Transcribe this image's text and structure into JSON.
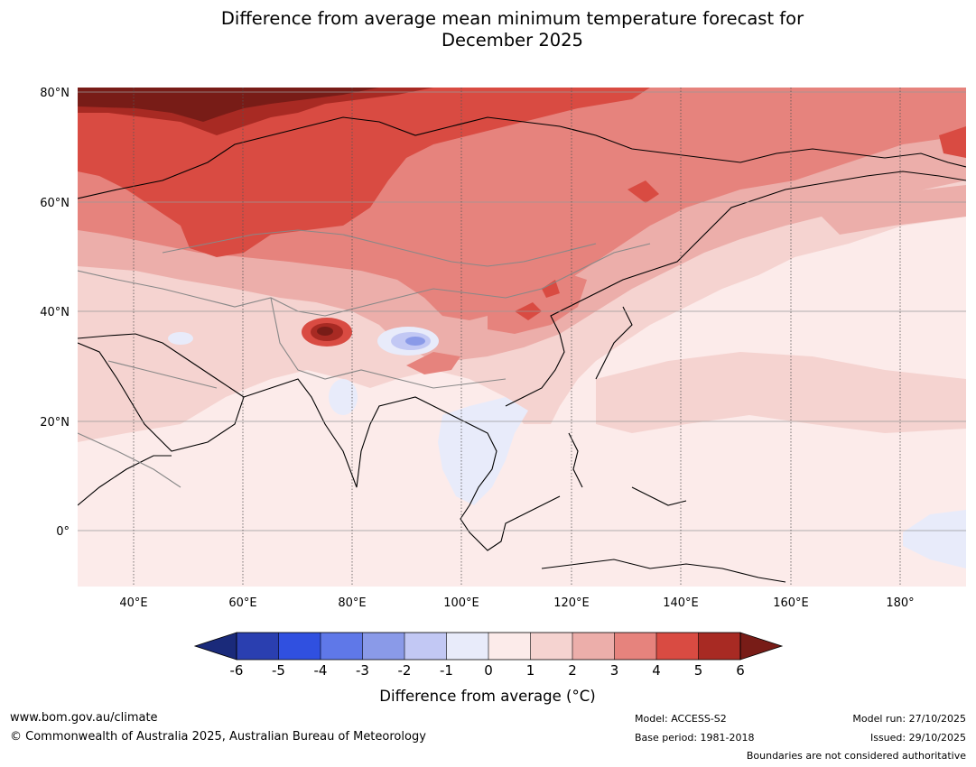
{
  "title": {
    "line1": "Difference from average mean minimum temperature forecast for",
    "line2": "December 2025"
  },
  "map": {
    "lat_ticks": [
      "80°N",
      "60°N",
      "40°N",
      "20°N",
      "0°"
    ],
    "lon_ticks": [
      "40°E",
      "60°E",
      "80°E",
      "100°E",
      "120°E",
      "140°E",
      "160°E",
      "180°"
    ],
    "extent": {
      "lon_min": 30,
      "lon_max": 191,
      "lat_min": -10,
      "lat_max": 81
    }
  },
  "colorbar": {
    "tick_labels": [
      "-6",
      "-5",
      "-4",
      "-3",
      "-2",
      "-1",
      "0",
      "1",
      "2",
      "3",
      "4",
      "5",
      "6"
    ],
    "colors": [
      "#1a2a7a",
      "#2a3fb0",
      "#3050e0",
      "#5f78e8",
      "#8a9ae8",
      "#c2c8f4",
      "#e8ebfa",
      "#fcebea",
      "#f5d3d0",
      "#ecaeaa",
      "#e6837d",
      "#d94b42",
      "#a82a23",
      "#781c17"
    ],
    "label": "Difference from average (°C)"
  },
  "footer": {
    "website": "www.bom.gov.au/climate",
    "copyright": "© Commonwealth of Australia 2025, Australian Bureau of Meteorology",
    "model": "Model: ACCESS-S2",
    "base_period": "Base period: 1981-2018",
    "model_run": "Model run: 27/10/2025",
    "issued": "Issued: 29/10/2025",
    "disclaimer": "Boundaries are not considered authoritative"
  }
}
